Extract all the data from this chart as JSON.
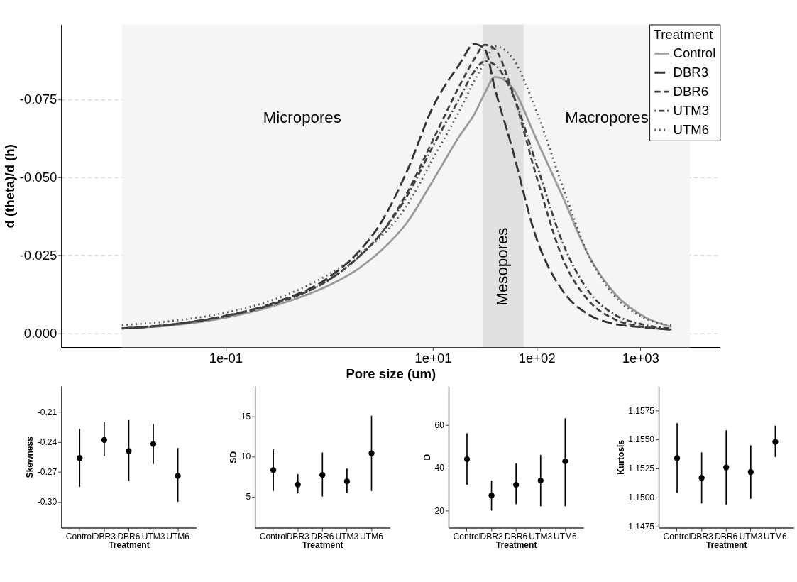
{
  "chart_data": [
    {
      "type": "line",
      "xlabel": "Pore size (um)",
      "ylabel": "d (theta)/d (h)",
      "legend_title": "Treatment",
      "x": [
        0.01,
        0.0316,
        0.1,
        0.316,
        1,
        1.78,
        3.16,
        5.62,
        10,
        17.8,
        25.1,
        31.6,
        39.8,
        56.2,
        100,
        178,
        316,
        562,
        1000,
        2000
      ],
      "series": [
        {
          "name": "Control",
          "color": "#999999",
          "line_style": "solid",
          "values": [
            -0.0015,
            -0.0026,
            -0.005,
            -0.0091,
            -0.0154,
            -0.02,
            -0.0265,
            -0.0355,
            -0.049,
            -0.063,
            -0.0703,
            -0.077,
            -0.0822,
            -0.0794,
            -0.062,
            -0.0438,
            -0.025,
            -0.0128,
            -0.006,
            -0.002
          ]
        },
        {
          "name": "DBR3",
          "color": "#333333",
          "line_style": "longdash",
          "values": [
            -0.0015,
            -0.0029,
            -0.0056,
            -0.0101,
            -0.018,
            -0.025,
            -0.0355,
            -0.052,
            -0.0726,
            -0.086,
            -0.0927,
            -0.091,
            -0.078,
            -0.061,
            -0.0302,
            -0.0136,
            -0.006,
            -0.003,
            -0.002,
            -0.0011
          ]
        },
        {
          "name": "DBR6",
          "color": "#404040",
          "line_style": "dashed",
          "values": [
            -0.0015,
            -0.0028,
            -0.0055,
            -0.0098,
            -0.0172,
            -0.0235,
            -0.032,
            -0.045,
            -0.062,
            -0.079,
            -0.088,
            -0.0925,
            -0.091,
            -0.079,
            -0.05,
            -0.024,
            -0.0105,
            -0.0045,
            -0.0022,
            -0.0012
          ]
        },
        {
          "name": "UTM3",
          "color": "#404040",
          "line_style": "dotdash",
          "values": [
            -0.0016,
            -0.0029,
            -0.0055,
            -0.0098,
            -0.0172,
            -0.0235,
            -0.032,
            -0.044,
            -0.06,
            -0.075,
            -0.084,
            -0.0872,
            -0.086,
            -0.078,
            -0.054,
            -0.029,
            -0.0135,
            -0.006,
            -0.003,
            -0.0015
          ]
        },
        {
          "name": "UTM6",
          "color": "#555555",
          "line_style": "dotted",
          "values": [
            -0.0026,
            -0.004,
            -0.0066,
            -0.0112,
            -0.019,
            -0.0245,
            -0.031,
            -0.041,
            -0.056,
            -0.071,
            -0.081,
            -0.087,
            -0.092,
            -0.089,
            -0.071,
            -0.047,
            -0.025,
            -0.012,
            -0.0055,
            -0.0025
          ]
        }
      ],
      "xlim": [
        0.0026,
        5850
      ],
      "ylim": [
        0.0045,
        -0.099
      ],
      "log": "x",
      "xticks": [
        {
          "value": 0.1,
          "label": "1e-01"
        },
        {
          "value": 10,
          "label": "1e+01"
        },
        {
          "value": 100,
          "label": "1e+02"
        },
        {
          "value": 1000,
          "label": "1e+03"
        }
      ],
      "yticks": [
        {
          "value": 0,
          "label": "0.000"
        },
        {
          "value": -0.025,
          "label": "-0.025"
        },
        {
          "value": -0.05,
          "label": "-0.050"
        },
        {
          "value": -0.075,
          "label": "-0.075"
        }
      ],
      "grid": true,
      "legend": "top right",
      "bands": [
        {
          "axis": "x",
          "from": 0.01,
          "to": 30,
          "color": "#f5f5f5",
          "label": "Micropores"
        },
        {
          "axis": "x",
          "from": 30,
          "to": 75,
          "color": "#e0e0e0",
          "label": "Mesopores"
        },
        {
          "axis": "x",
          "from": 75,
          "to": 3000,
          "color": "#f5f5f5",
          "label": "Macropores"
        }
      ]
    },
    {
      "type": "scatter",
      "xlabel": "Treatment",
      "ylabel": "Skewness",
      "categories": [
        "Control",
        "DBR3",
        "DBR6",
        "UTM3",
        "UTM6"
      ],
      "color": "#000000",
      "marker": "circle",
      "values": [
        -0.256,
        -0.238,
        -0.249,
        -0.242,
        -0.274
      ],
      "errors": [
        [
          -0.285,
          -0.227
        ],
        [
          -0.254,
          -0.22
        ],
        [
          -0.279,
          -0.218
        ],
        [
          -0.262,
          -0.222
        ],
        [
          -0.3,
          -0.246
        ]
      ],
      "ylim": [
        -0.326,
        -0.184
      ],
      "yticks": [
        {
          "value": -0.3,
          "label": "-0.30"
        },
        -0.27,
        -0.24,
        -0.21
      ]
    },
    {
      "type": "scatter",
      "xlabel": "Treatment",
      "ylabel": "SD",
      "categories": [
        "Control",
        "DBR3",
        "DBR6",
        "UTM3",
        "UTM6"
      ],
      "color": "#000000",
      "marker": "circle",
      "values": [
        8.3,
        6.5,
        7.7,
        6.9,
        10.4
      ],
      "errors": [
        [
          5.7,
          10.9
        ],
        [
          5.4,
          7.8
        ],
        [
          5.0,
          10.5
        ],
        [
          5.4,
          8.5
        ],
        [
          5.7,
          15.1
        ]
      ],
      "ylim": [
        1.1,
        18.8
      ],
      "yticks": [
        5,
        10,
        15
      ]
    },
    {
      "type": "scatter",
      "xlabel": "Treatment",
      "ylabel": "D",
      "categories": [
        "Control",
        "DBR3",
        "DBR6",
        "UTM3",
        "UTM6"
      ],
      "color": "#000000",
      "marker": "circle",
      "values": [
        44,
        27,
        32,
        34,
        43
      ],
      "errors": [
        [
          32,
          56
        ],
        [
          20,
          34
        ],
        [
          23,
          42
        ],
        [
          22,
          46
        ],
        [
          22,
          63
        ]
      ],
      "ylim": [
        12,
        78
      ],
      "yticks": [
        20,
        40,
        60
      ]
    },
    {
      "type": "scatter",
      "xlabel": "Treatment",
      "ylabel": "Kurtosis",
      "categories": [
        "Control",
        "DBR3",
        "DBR6",
        "UTM3",
        "UTM6"
      ],
      "color": "#000000",
      "marker": "circle",
      "values": [
        1.1534,
        1.1517,
        1.1526,
        1.1522,
        1.1548
      ],
      "errors": [
        [
          1.1504,
          1.1564
        ],
        [
          1.1495,
          1.1539
        ],
        [
          1.1494,
          1.1558
        ],
        [
          1.1499,
          1.1545
        ],
        [
          1.1535,
          1.1562
        ]
      ],
      "ylim": [
        1.1474,
        1.1596
      ],
      "yticks": [
        {
          "value": 1.1475,
          "label": "1.1475"
        },
        {
          "value": 1.15,
          "label": "1.1500"
        },
        {
          "value": 1.1525,
          "label": "1.1525"
        },
        {
          "value": 1.155,
          "label": "1.1550"
        },
        {
          "value": 1.1575,
          "label": "1.1575"
        }
      ]
    }
  ]
}
